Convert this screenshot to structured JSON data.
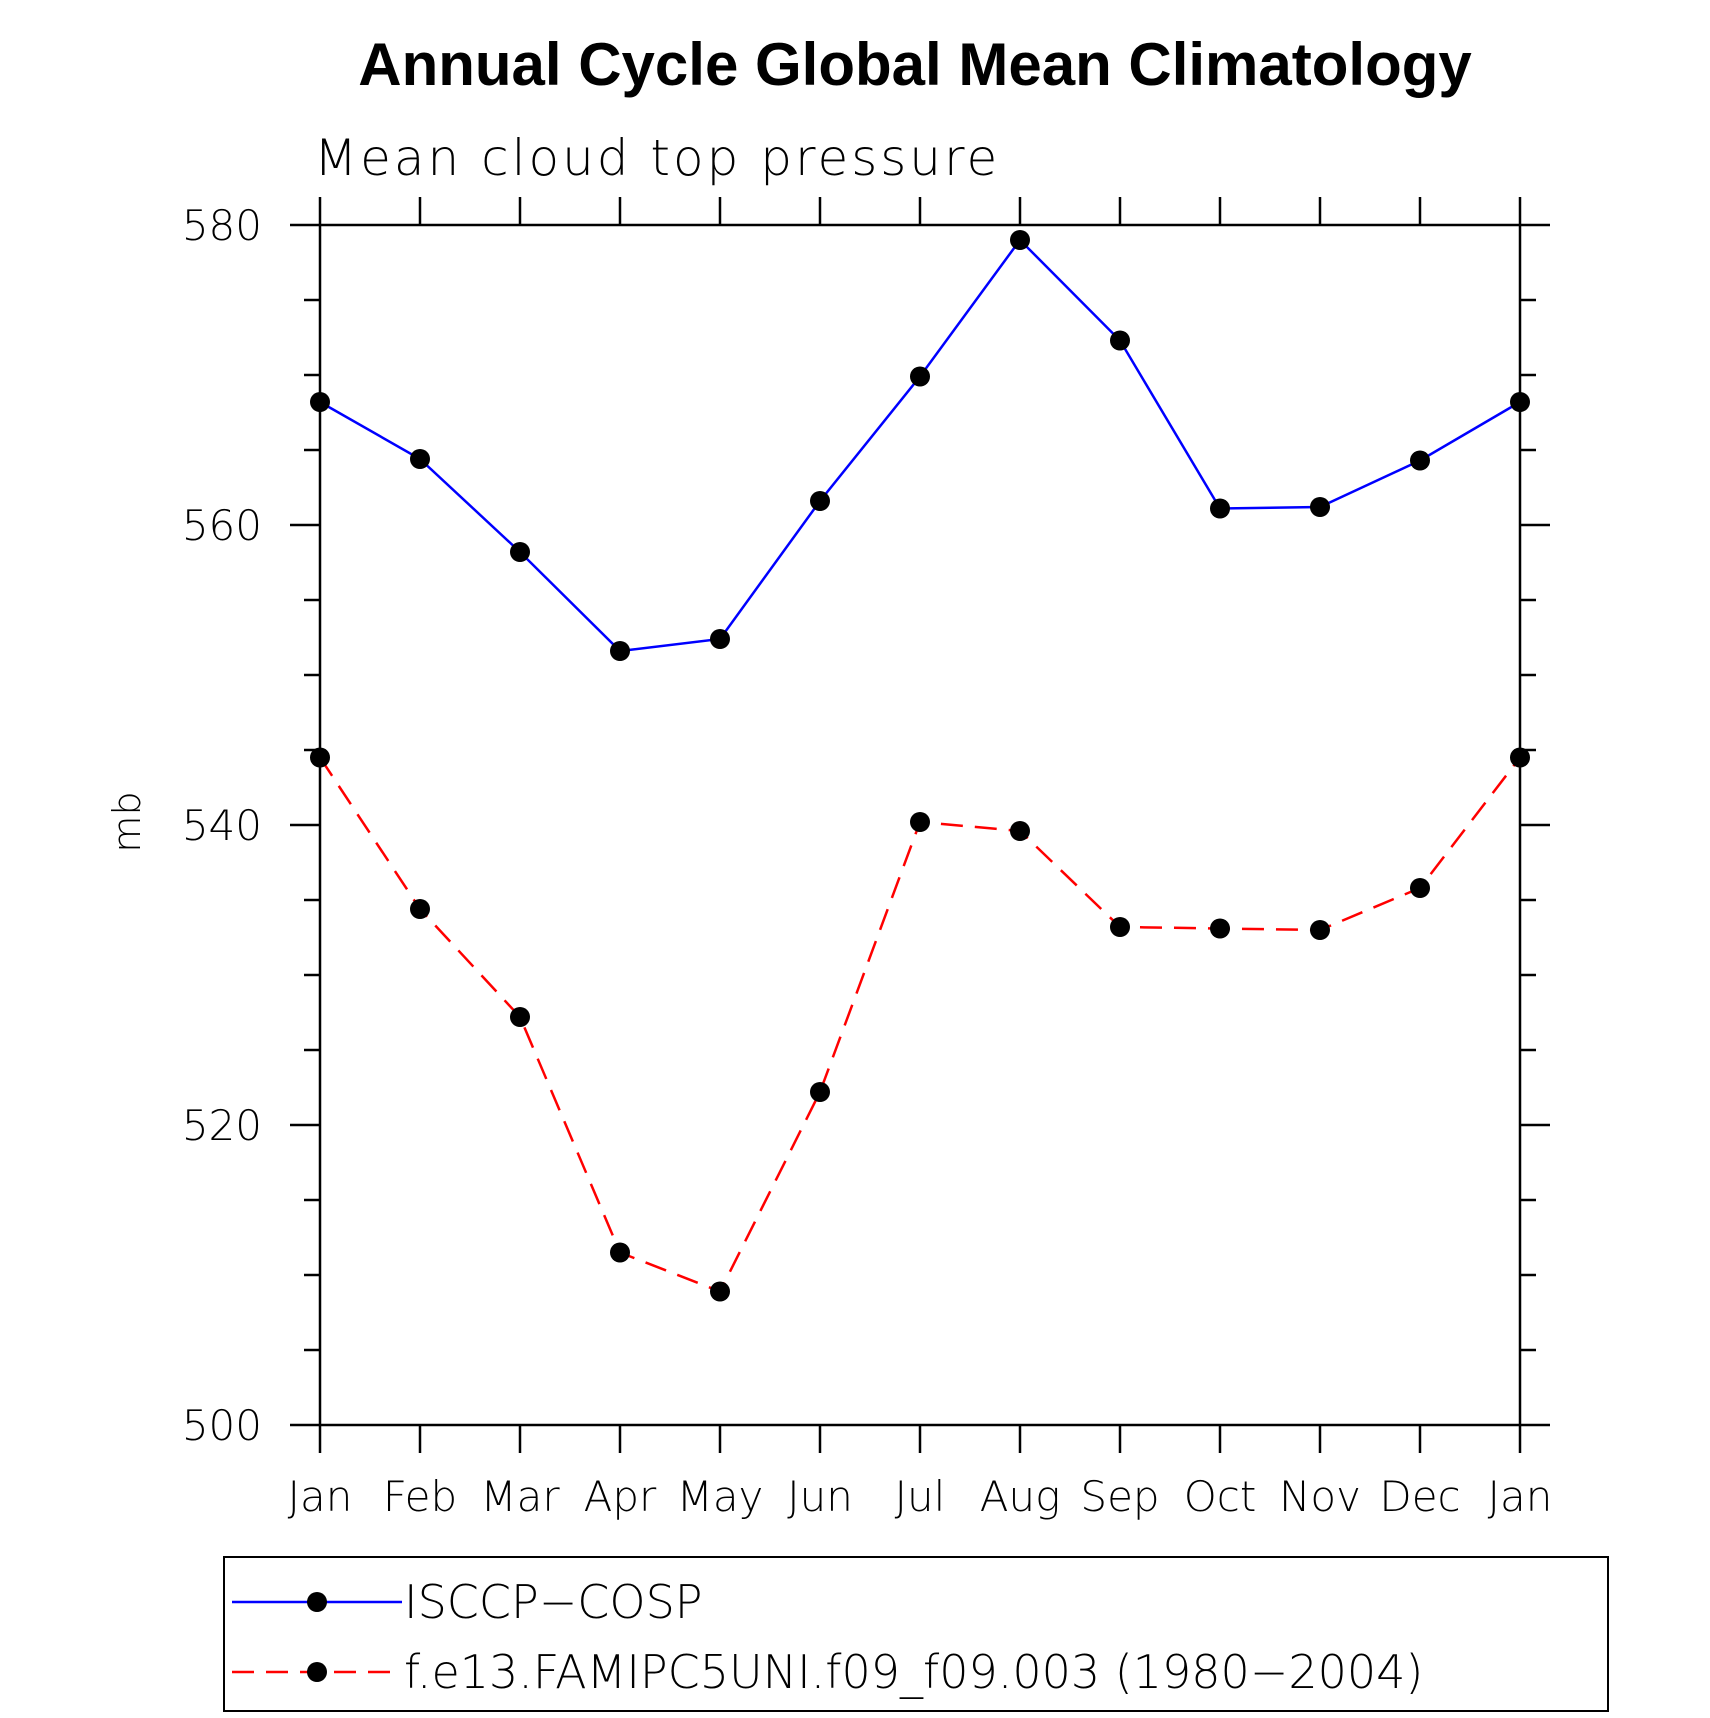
{
  "chart_data": {
    "type": "line",
    "title": "Annual Cycle Global Mean Climatology",
    "subtitle": "Mean cloud top pressure",
    "ylabel": "mb",
    "xlabel": "",
    "categories": [
      "Jan",
      "Feb",
      "Mar",
      "Apr",
      "May",
      "Jun",
      "Jul",
      "Aug",
      "Sep",
      "Oct",
      "Nov",
      "Dec",
      "Jan"
    ],
    "yticks": [
      500,
      520,
      540,
      560,
      580
    ],
    "ylim": [
      500,
      580
    ],
    "grid": false,
    "legend_position": "bottom",
    "series": [
      {
        "name": "ISCCP−COSP",
        "color": "#0000ff",
        "dash": "solid",
        "marker": "filled-circle",
        "values": [
          568.2,
          564.4,
          558.2,
          551.6,
          552.4,
          561.6,
          569.9,
          579.0,
          572.3,
          561.1,
          561.2,
          564.3,
          568.2
        ]
      },
      {
        "name": "f.e13.FAMIPC5UNI.f09_f09.003 (1980−2004)",
        "color": "#ff0000",
        "dash": "dashed",
        "marker": "filled-circle",
        "values": [
          544.5,
          534.4,
          527.2,
          511.5,
          508.9,
          522.2,
          540.2,
          539.6,
          533.2,
          533.1,
          533.0,
          535.8,
          544.5
        ]
      }
    ]
  }
}
